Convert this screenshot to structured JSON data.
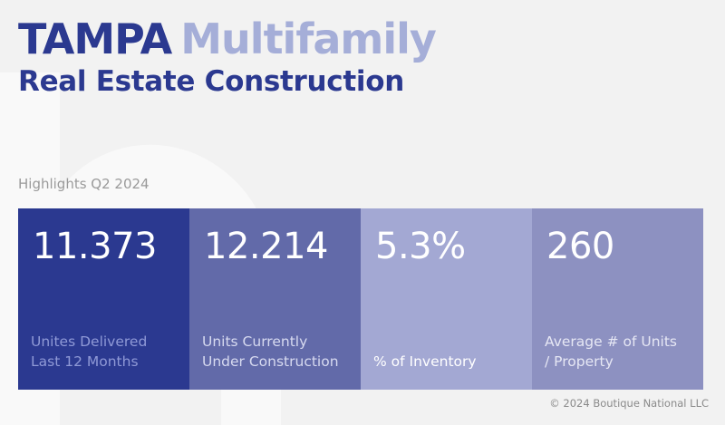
{
  "header": {
    "title_city": "TAMPA",
    "title_kind": "Multifamily",
    "subtitle": "Real Estate Construction"
  },
  "highlights_label": "Highlights Q2 2024",
  "cards": [
    {
      "value": "11.373",
      "label_line1": "Unites Delivered",
      "label_line2": "Last 12 Months",
      "bg": "#2b3990",
      "label_color": "#8f99d6"
    },
    {
      "value": "12.214",
      "label_line1": "Units Currently",
      "label_line2": "Under Construction",
      "bg": "#626aa9",
      "label_color": "#d7daf0"
    },
    {
      "value": "5.3%",
      "label_line1": "",
      "label_line2": "% of Inventory",
      "bg": "#a3a8d3",
      "label_color": "#ffffff"
    },
    {
      "value": "260",
      "label_line1": "Average # of Units",
      "label_line2": "/ Property",
      "bg": "#8d91c1",
      "label_color": "#e6e7f4"
    }
  ],
  "copyright": "© 2024 Boutique National LLC",
  "colors": {
    "background": "#f2f2f2",
    "brand_dark": "#2b3990",
    "brand_light": "#a5aed8"
  }
}
